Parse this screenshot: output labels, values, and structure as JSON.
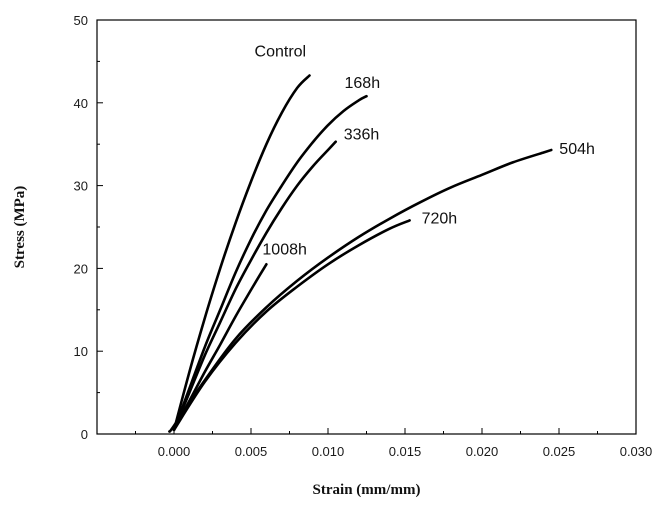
{
  "chart_data": {
    "type": "line",
    "title": "",
    "xlabel": "Strain (mm/mm)",
    "ylabel": "Stress (MPa)",
    "xlim": [
      -0.005,
      0.03
    ],
    "ylim": [
      0,
      50
    ],
    "x_ticks": [
      "0.000",
      "0.005",
      "0.010",
      "0.015",
      "0.020",
      "0.025",
      "0.030"
    ],
    "y_ticks": [
      "0",
      "10",
      "20",
      "30",
      "40",
      "50"
    ],
    "grid": false,
    "legend": "none",
    "series": [
      {
        "name": "Control",
        "x": [
          0.0,
          0.001,
          0.002,
          0.003,
          0.004,
          0.005,
          0.006,
          0.007,
          0.008,
          0.0088
        ],
        "y": [
          0.5,
          7.5,
          14.0,
          20.0,
          25.5,
          30.5,
          35.0,
          38.8,
          41.8,
          43.3
        ]
      },
      {
        "name": "168h",
        "x": [
          0.0,
          0.001,
          0.002,
          0.003,
          0.004,
          0.005,
          0.006,
          0.007,
          0.008,
          0.009,
          0.01,
          0.011,
          0.012,
          0.0125
        ],
        "y": [
          0.5,
          5.5,
          10.5,
          15.0,
          19.5,
          23.5,
          27.0,
          30.0,
          32.8,
          35.2,
          37.3,
          39.0,
          40.3,
          40.8
        ]
      },
      {
        "name": "336h",
        "x": [
          0.0,
          0.001,
          0.002,
          0.003,
          0.004,
          0.005,
          0.006,
          0.007,
          0.008,
          0.009,
          0.01,
          0.0105
        ],
        "y": [
          0.5,
          5.0,
          9.5,
          13.5,
          17.5,
          21.0,
          24.3,
          27.3,
          30.0,
          32.3,
          34.3,
          35.3
        ]
      },
      {
        "name": "1008h",
        "x": [
          0.0,
          0.001,
          0.002,
          0.003,
          0.004,
          0.005,
          0.006
        ],
        "y": [
          0.5,
          4.0,
          7.5,
          10.8,
          14.2,
          17.4,
          20.5
        ]
      },
      {
        "name": "504h",
        "x": [
          -0.0003,
          0.0,
          0.002,
          0.004,
          0.006,
          0.008,
          0.01,
          0.012,
          0.014,
          0.016,
          0.018,
          0.02,
          0.022,
          0.024,
          0.0245
        ],
        "y": [
          0.3,
          1.0,
          6.5,
          11.5,
          15.3,
          18.5,
          21.3,
          23.8,
          26.0,
          28.0,
          29.8,
          31.3,
          32.8,
          34.0,
          34.3
        ]
      },
      {
        "name": "720h",
        "x": [
          0.0,
          0.002,
          0.004,
          0.006,
          0.008,
          0.01,
          0.012,
          0.014,
          0.0153
        ],
        "y": [
          0.5,
          6.3,
          11.0,
          14.8,
          17.8,
          20.5,
          22.8,
          24.8,
          25.8
        ]
      }
    ]
  }
}
